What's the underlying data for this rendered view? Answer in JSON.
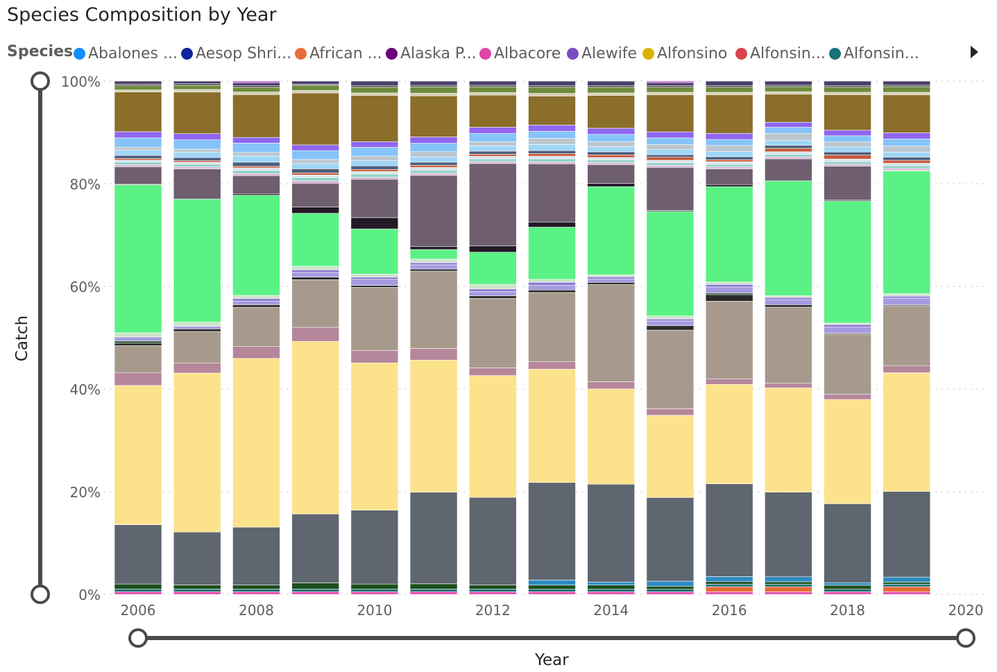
{
  "title": "Species Composition by Year",
  "legend": {
    "label": "Species",
    "items": [
      {
        "text": "Abalones ...",
        "color": "#118DFF"
      },
      {
        "text": "Aesop Shri...",
        "color": "#12239E"
      },
      {
        "text": "African ...",
        "color": "#E66C37"
      },
      {
        "text": "Alaska P...",
        "color": "#6B007B"
      },
      {
        "text": "Albacore",
        "color": "#E044A7"
      },
      {
        "text": "Alewife",
        "color": "#744EC2"
      },
      {
        "text": "Alfonsino",
        "color": "#D9B300"
      },
      {
        "text": "Alfonsin...",
        "color": "#D64550"
      },
      {
        "text": "Alfonsin...",
        "color": "#197278"
      }
    ]
  },
  "chart_data": {
    "type": "bar",
    "stacked": true,
    "normalized": true,
    "title": "Species Composition by Year",
    "xlabel": "Year",
    "ylabel": "Catch",
    "xlim": [
      2006,
      2020
    ],
    "ylim": [
      0,
      100
    ],
    "x_ticks": [
      "2006",
      "2008",
      "2010",
      "2012",
      "2014",
      "2016",
      "2018",
      "2020"
    ],
    "y_ticks": [
      "0%",
      "20%",
      "40%",
      "60%",
      "80%",
      "100%"
    ],
    "years": [
      2006,
      2007,
      2008,
      2009,
      2010,
      2011,
      2012,
      2013,
      2014,
      2015,
      2016,
      2017,
      2018,
      2019
    ],
    "series": [
      {
        "color": "#E044A7",
        "values": [
          0.5,
          0.5,
          0.5,
          0.5,
          0.5,
          0.5,
          0.5,
          0.5,
          0.5,
          0.5,
          0.5,
          0.5,
          0.5,
          0.5
        ]
      },
      {
        "color": "#E66C37",
        "values": [
          0,
          0,
          0,
          0,
          0,
          0,
          0,
          0,
          0,
          0,
          1,
          1,
          0,
          1
        ]
      },
      {
        "color": "#197278",
        "values": [
          0.5,
          0.5,
          0.5,
          0.5,
          0.5,
          0.5,
          0.5,
          0.5,
          0.5,
          0.5,
          0.5,
          0.5,
          0.5,
          0.5
        ]
      },
      {
        "color": "#1D4F1D",
        "values": [
          1,
          0.8,
          0.8,
          1.2,
          1,
          1,
          0.8,
          0.8,
          0.8,
          0.6,
          0.5,
          0.5,
          0.8,
          0.4
        ]
      },
      {
        "color": "#2E8BC0",
        "values": [
          0,
          0,
          0,
          0,
          0,
          0,
          0,
          1,
          0.6,
          1,
          1,
          1,
          0.5,
          1
        ]
      },
      {
        "color": "#5F6670",
        "values": [
          11.5,
          10.2,
          11.2,
          13.3,
          14.4,
          17.4,
          16.9,
          19.1,
          19.1,
          16.5,
          18.3,
          16.9,
          15.6,
          16.9
        ]
      },
      {
        "color": "#FCE28B",
        "values": [
          27.0,
          30.6,
          32.7,
          33.3,
          28.7,
          25.1,
          23.5,
          22.2,
          18.6,
          16.2,
          19.6,
          20.8,
          20.6,
          23.4
        ]
      },
      {
        "color": "#B6869A",
        "values": [
          2.5,
          1.9,
          2.3,
          2.7,
          2.4,
          2.2,
          1.5,
          1.5,
          1.4,
          1.3,
          1.1,
          0.9,
          1.0,
          1.4
        ]
      },
      {
        "color": "#A79A8D",
        "values": [
          5.2,
          6.1,
          7.6,
          9.2,
          12.3,
          14.7,
          13.4,
          13.5,
          19.0,
          15.5,
          15.3,
          15.2,
          11.9,
          11.8
        ]
      },
      {
        "color": "#2B2B2B",
        "values": [
          0.5,
          0.5,
          0.5,
          0.5,
          0.4,
          0.4,
          0.5,
          0.5,
          0.4,
          0.9,
          1.3,
          0.5,
          0.2,
          0.2
        ]
      },
      {
        "color": "#1F4E1F",
        "values": [
          0.4,
          0,
          0,
          0,
          0,
          0,
          0,
          0,
          0,
          0,
          0.3,
          0,
          0,
          0
        ]
      },
      {
        "color": "#A69BE0",
        "values": [
          0.8,
          0.5,
          0.7,
          0.9,
          1.2,
          0.8,
          0.8,
          0.9,
          0.7,
          0.9,
          1.2,
          1.0,
          1.2,
          1.3
        ]
      },
      {
        "color": "#8C7BD2",
        "values": [
          0,
          0,
          0.5,
          0.5,
          0.4,
          0.4,
          0.5,
          0.6,
          0.4,
          0.4,
          0.5,
          0.4,
          0.5,
          0.4
        ]
      },
      {
        "color": "#CDE3C9",
        "values": [
          0.8,
          0.8,
          0.6,
          0.7,
          0.6,
          0.7,
          0.9,
          0.6,
          0.4,
          0.6,
          0.5,
          0.4,
          0.3,
          0.5
        ]
      },
      {
        "color": "#5AF284",
        "values": [
          28.7,
          23.7,
          19.4,
          10.2,
          8.8,
          1.8,
          6.2,
          10.2,
          17.2,
          20.6,
          18.8,
          22.9,
          24.1,
          24.2
        ]
      },
      {
        "color": "#221B26",
        "values": [
          0.1,
          0,
          0.3,
          1.2,
          2.2,
          0.6,
          1.2,
          1.0,
          0.6,
          0.2,
          0.4,
          0,
          0.2,
          0
        ]
      },
      {
        "color": "#6E5E6E",
        "values": [
          3.4,
          5.8,
          3.5,
          4.6,
          7.5,
          13.5,
          15.9,
          11.4,
          3.7,
          8.5,
          3.1,
          4.4,
          6.7,
          0.1
        ]
      },
      {
        "color": "#D9B3D9",
        "values": [
          0.4,
          0.4,
          0.4,
          0.5,
          0.4,
          0.4,
          0.4,
          0.4,
          0.4,
          0.4,
          0.4,
          0.4,
          0.4,
          0.4
        ]
      },
      {
        "color": "#8FD3C6",
        "values": [
          0.5,
          0.5,
          0.6,
          0.6,
          0.6,
          0.6,
          0.5,
          0.6,
          0.5,
          0.5,
          0.5,
          0.5,
          0.5,
          0.5
        ]
      },
      {
        "color": "#D9E3EA",
        "values": [
          0.4,
          0.4,
          0.5,
          0.5,
          0.5,
          0.5,
          0.5,
          0.5,
          0.5,
          0.5,
          0.5,
          0.5,
          0.5,
          0.5
        ]
      },
      {
        "color": "#C85C3C",
        "values": [
          0.3,
          0.3,
          0.3,
          0.4,
          0.4,
          0.4,
          0.4,
          0.5,
          0.5,
          0.6,
          0.4,
          0.7,
          0.8,
          0.6
        ]
      },
      {
        "color": "#4E5D7D",
        "values": [
          0.6,
          0.6,
          0.8,
          0.8,
          0.7,
          0.6,
          0.6,
          0.6,
          0.6,
          0.5,
          0.6,
          0.6,
          0.6,
          0.6
        ]
      },
      {
        "color": "#9FD6F6",
        "values": [
          1.0,
          1.0,
          1.2,
          1.0,
          1.0,
          1.0,
          1.0,
          1.2,
          1.0,
          1.0,
          1.0,
          1.0,
          1.0,
          1.0
        ]
      },
      {
        "color": "#BCC6CF",
        "values": [
          0.6,
          0.6,
          0.7,
          0.8,
          0.9,
          1.0,
          0.8,
          1.2,
          1.0,
          1.0,
          1.2,
          1.4,
          1.0,
          1.2
        ]
      },
      {
        "color": "#85C3F9",
        "values": [
          1.8,
          1.8,
          1.8,
          1.7,
          1.7,
          1.6,
          1.6,
          1.4,
          1.4,
          1.3,
          1.2,
          1.2,
          1.2,
          1.4
        ]
      },
      {
        "color": "#8F66F0",
        "values": [
          1.2,
          1.2,
          1.1,
          1.1,
          1.1,
          1.2,
          1.2,
          1.2,
          1.2,
          1.2,
          1.2,
          1.0,
          1.1,
          1.2
        ]
      },
      {
        "color": "#8A6E2A",
        "values": [
          7.7,
          8.0,
          8.3,
          10.0,
          9.0,
          7.8,
          6.2,
          5.7,
          6.4,
          7.3,
          7.6,
          5.6,
          7.0,
          7.5
        ]
      },
      {
        "color": "#D5D0B5",
        "values": [
          0.4,
          0.5,
          0.5,
          0.5,
          0.5,
          0.5,
          0.5,
          0.5,
          0.5,
          0.5,
          0.5,
          0.5,
          0.5,
          0.5
        ]
      },
      {
        "color": "#6E8B3D",
        "values": [
          0.8,
          0.8,
          0.9,
          1.0,
          1.1,
          1.2,
          1.1,
          1.2,
          1.1,
          1.0,
          1.0,
          1.0,
          1.0,
          1.1
        ]
      },
      {
        "color": "#4A4A4A",
        "values": [
          0.3,
          0.3,
          0.3,
          0.2,
          0.3,
          0.3,
          0.3,
          0.3,
          0.3,
          0.3,
          0.3,
          0.3,
          0.3,
          0.3
        ]
      },
      {
        "color": "#4B3E6B",
        "values": [
          0.6,
          0.5,
          0.6,
          0.6,
          0.9,
          0.8,
          0.8,
          0.9,
          0.9,
          0.6,
          0.9,
          0.8,
          0.9,
          0.8
        ]
      },
      {
        "color": "#C95BDE",
        "values": [
          0,
          0,
          0.3,
          0,
          0,
          0,
          0,
          0,
          0,
          0.3,
          0,
          0,
          0,
          0
        ]
      }
    ]
  }
}
